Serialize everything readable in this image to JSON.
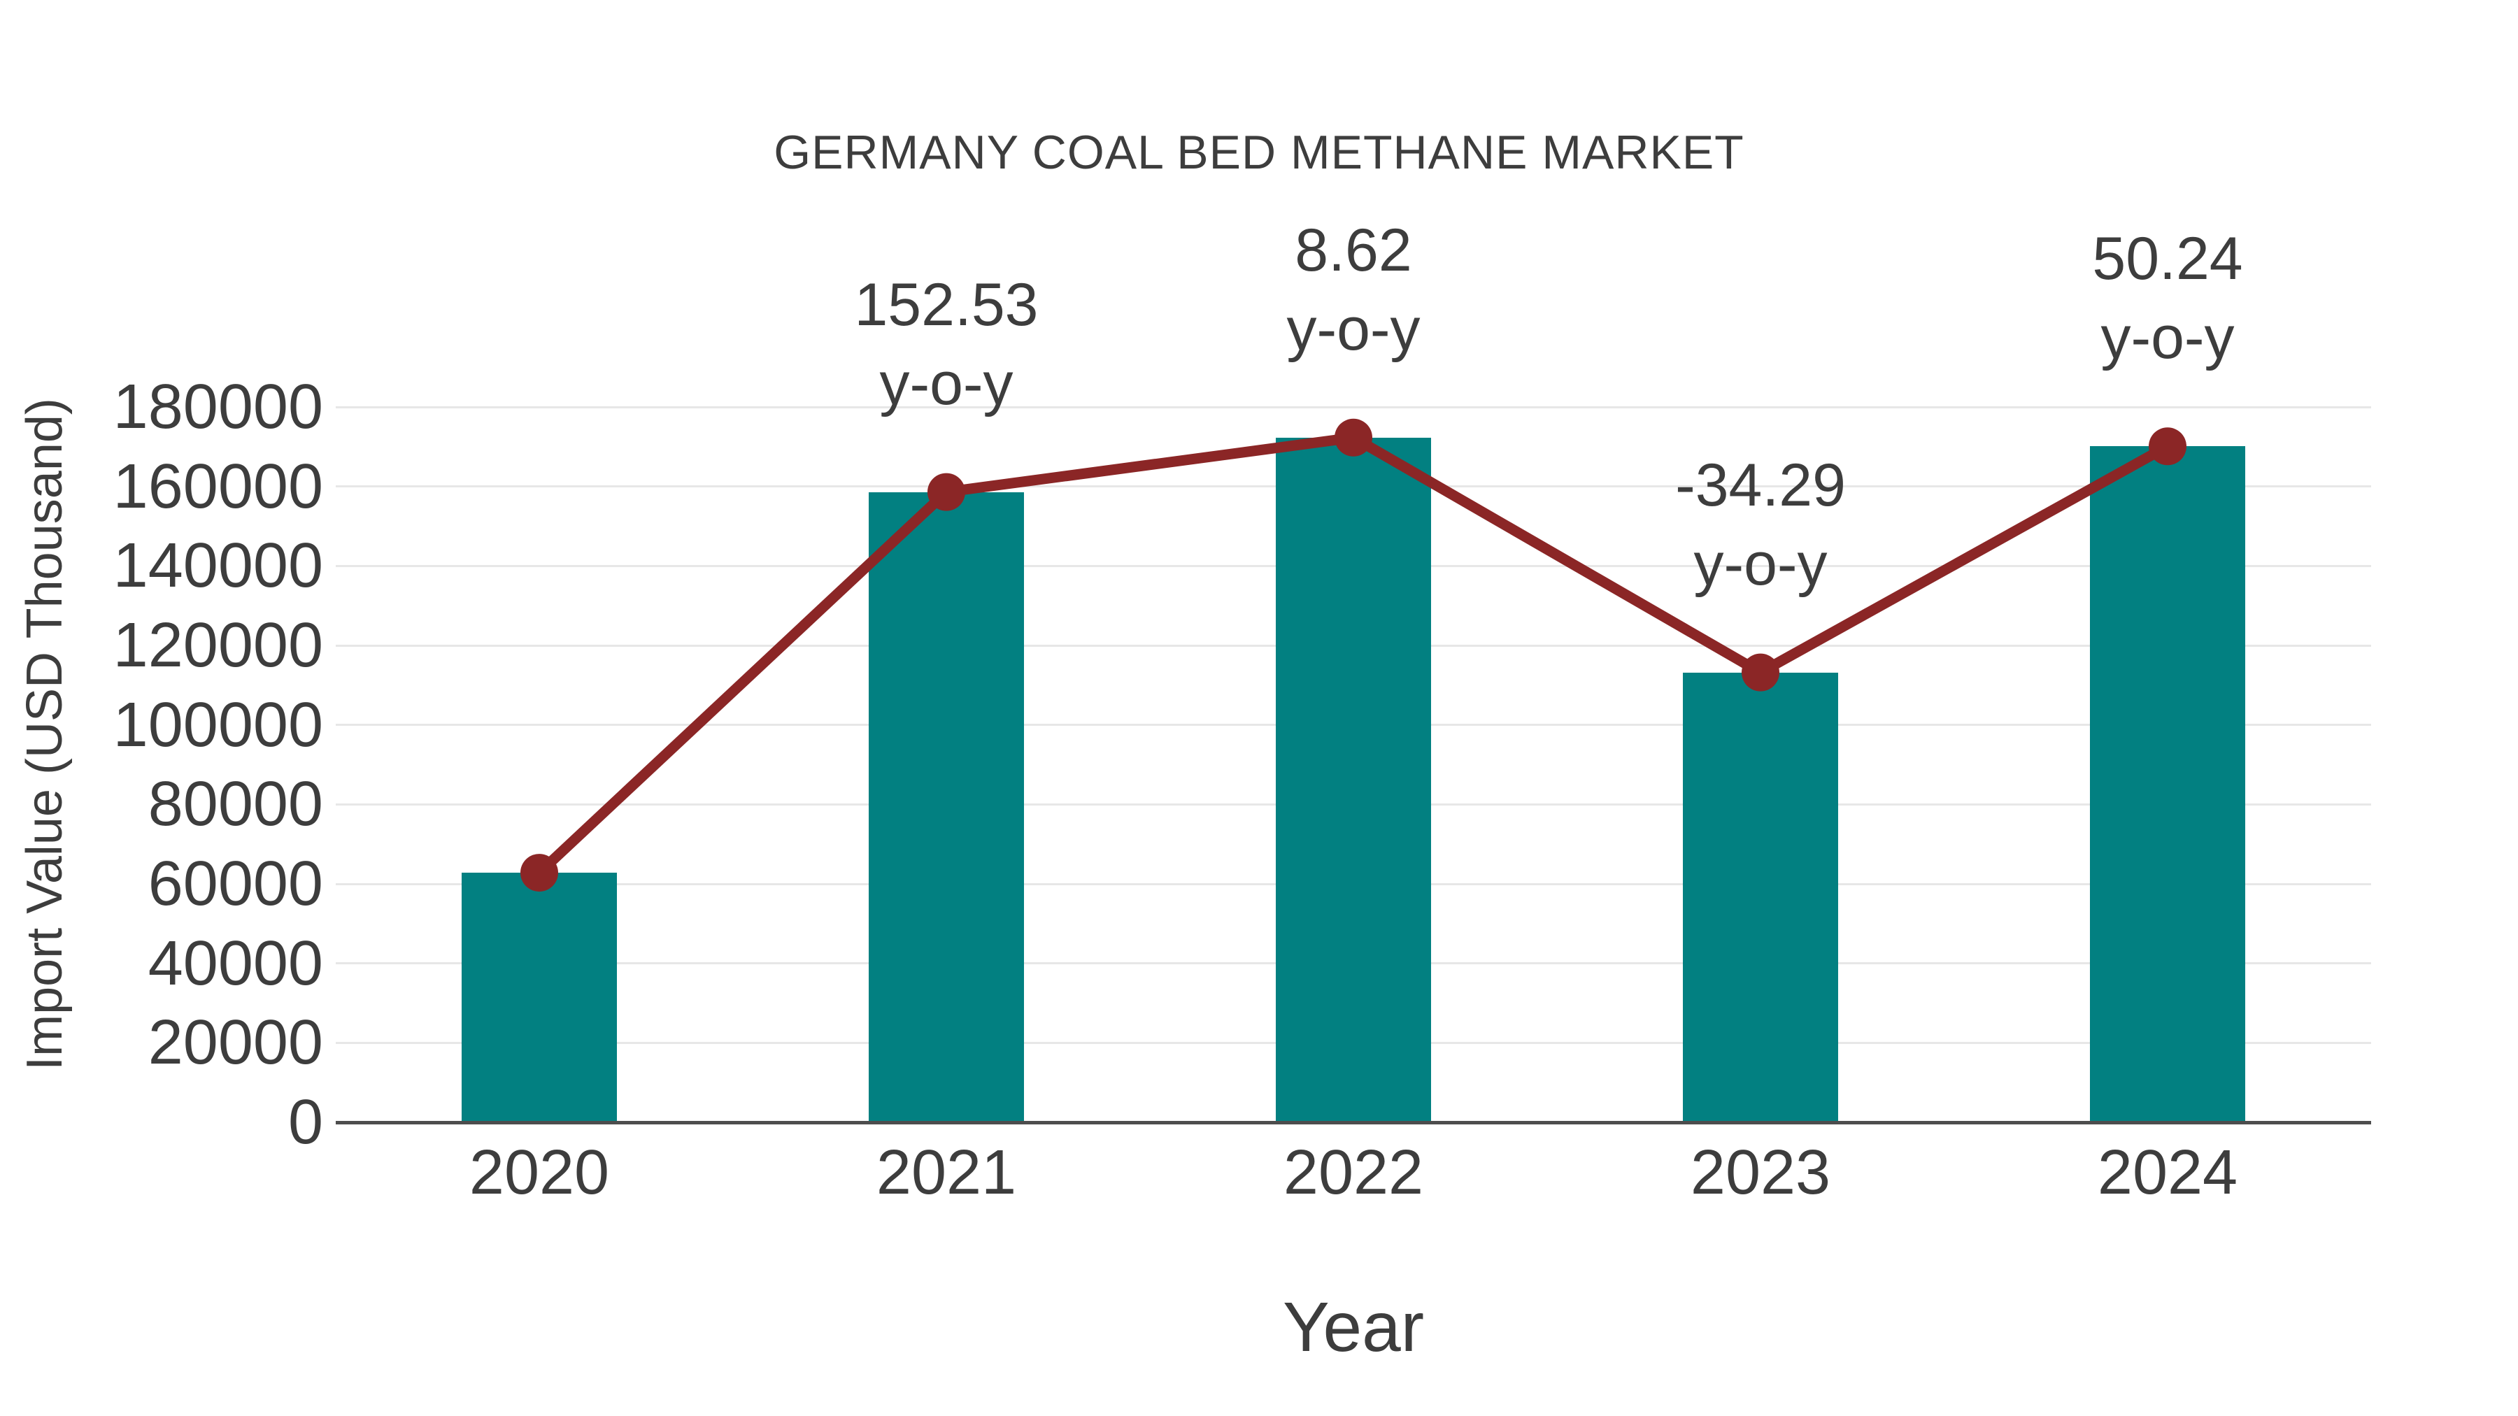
{
  "chart_data": {
    "type": "bar",
    "title": "GERMANY COAL BED METHANE MARKET",
    "xlabel": "Year",
    "ylabel": "Import Value (USD Thousand)",
    "categories": [
      "2020",
      "2021",
      "2022",
      "2023",
      "2024"
    ],
    "series": [
      {
        "name": "Import Value",
        "type": "bar",
        "color": "#028081",
        "values": [
          62800,
          158600,
          172300,
          113200,
          170100
        ]
      },
      {
        "name": "Import Value trend",
        "type": "line",
        "color": "#8B2626",
        "marker": "circle",
        "values": [
          62800,
          158600,
          172300,
          113200,
          170100
        ]
      }
    ],
    "annotations": [
      {
        "category": "2021",
        "value": "152.53",
        "label": "y-o-y"
      },
      {
        "category": "2022",
        "value": "8.62",
        "label": "y-o-y"
      },
      {
        "category": "2023",
        "value": "-34.29",
        "label": "y-o-y"
      },
      {
        "category": "2024",
        "value": "50.24",
        "label": "y-o-y"
      }
    ],
    "yoy_percent": [
      null,
      152.53,
      8.62,
      -34.29,
      50.24
    ],
    "ylim": [
      0,
      180000
    ],
    "ytick_step": 20000,
    "grid": true,
    "legend_position": "none",
    "colors": {
      "text": "#3D3D3D",
      "axis_line": "#4D4D4D",
      "gridline": "#E7E7E7",
      "background": "#FFFFFF"
    }
  }
}
